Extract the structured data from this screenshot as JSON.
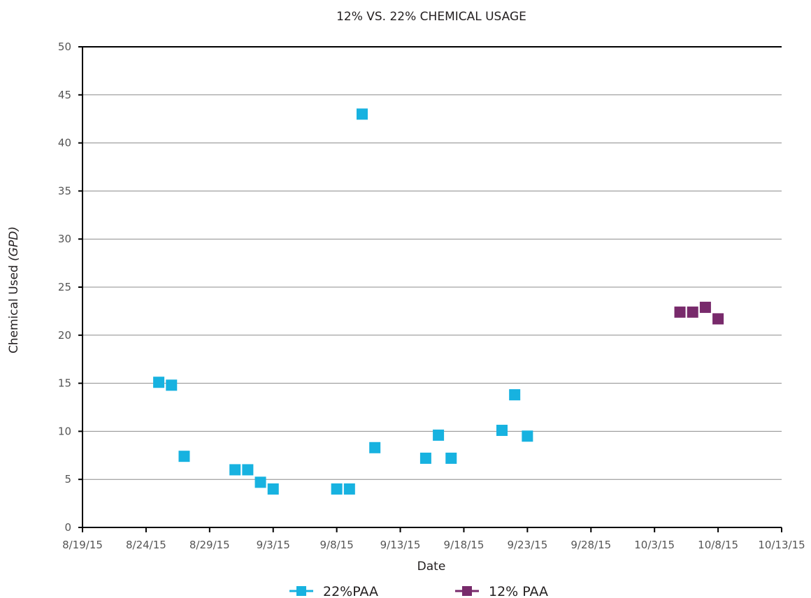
{
  "chart_data": {
    "type": "scatter",
    "title": "12% VS. 22% CHEMICAL USAGE",
    "xlabel": "Date",
    "ylabel_main": "Chemical Used ",
    "ylabel_unit": "(GPD)",
    "x_ticks": [
      "8/19/15",
      "8/24/15",
      "8/29/15",
      "9/3/15",
      "9/8/15",
      "9/13/15",
      "9/18/15",
      "9/23/15",
      "9/28/15",
      "10/3/15",
      "10/8/15",
      "10/13/15"
    ],
    "xlim": [
      "8/19/15",
      "10/13/15"
    ],
    "y_ticks": [
      0,
      5,
      10,
      15,
      20,
      25,
      30,
      35,
      40,
      45,
      50
    ],
    "ylim": [
      0,
      50
    ],
    "grid": "horizontal",
    "legend_position": "bottom",
    "series": [
      {
        "name": "22%PAA",
        "color": "#17b2e0",
        "marker": "square",
        "points": [
          {
            "x": "8/25/15",
            "y": 15.1
          },
          {
            "x": "8/26/15",
            "y": 14.8
          },
          {
            "x": "8/27/15",
            "y": 7.4
          },
          {
            "x": "8/31/15",
            "y": 6.0
          },
          {
            "x": "9/1/15",
            "y": 6.0
          },
          {
            "x": "9/2/15",
            "y": 4.7
          },
          {
            "x": "9/3/15",
            "y": 4.0
          },
          {
            "x": "9/8/15",
            "y": 4.0
          },
          {
            "x": "9/9/15",
            "y": 4.0
          },
          {
            "x": "9/10/15",
            "y": 43.0
          },
          {
            "x": "9/11/15",
            "y": 8.3
          },
          {
            "x": "9/15/15",
            "y": 7.2
          },
          {
            "x": "9/16/15",
            "y": 9.6
          },
          {
            "x": "9/17/15",
            "y": 7.2
          },
          {
            "x": "9/21/15",
            "y": 10.1
          },
          {
            "x": "9/22/15",
            "y": 13.8
          },
          {
            "x": "9/23/15",
            "y": 9.5
          }
        ]
      },
      {
        "name": "12% PAA",
        "color": "#782a6b",
        "marker": "square",
        "points": [
          {
            "x": "10/5/15",
            "y": 22.4
          },
          {
            "x": "10/6/15",
            "y": 22.4
          },
          {
            "x": "10/7/15",
            "y": 22.9
          },
          {
            "x": "10/8/15",
            "y": 21.7
          }
        ]
      }
    ]
  }
}
